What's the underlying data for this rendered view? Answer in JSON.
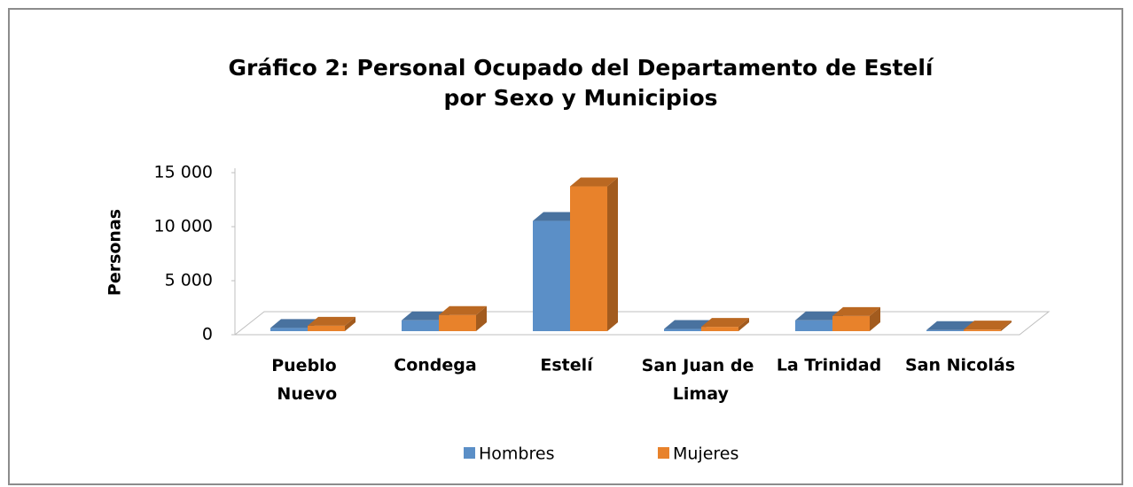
{
  "chart_data": {
    "type": "bar3d",
    "title": [
      "Gráfico 2: Personal Ocupado del Departamento de Estelí",
      "por Sexo  y Municipios"
    ],
    "y_label": "Personas",
    "categories": [
      "Pueblo Nuevo",
      "Condega",
      "Estelí",
      "San Juan de Limay",
      "La Trinidad",
      "San Nicolás"
    ],
    "series": [
      {
        "name": "Hombres",
        "color": "#5b8fc7",
        "values": [
          300,
          1000,
          10200,
          200,
          1000,
          100
        ]
      },
      {
        "name": "Mujeres",
        "color": "#e8822b",
        "values": [
          500,
          1500,
          13400,
          400,
          1400,
          150
        ]
      }
    ],
    "ylim": [
      0,
      15000
    ],
    "yticks": [
      0,
      {
        "value": 5000,
        "label": "5 000"
      },
      {
        "value": 10000,
        "label": "10 000"
      },
      {
        "value": 15000,
        "label": "15 000"
      }
    ],
    "legend": "bottom"
  }
}
